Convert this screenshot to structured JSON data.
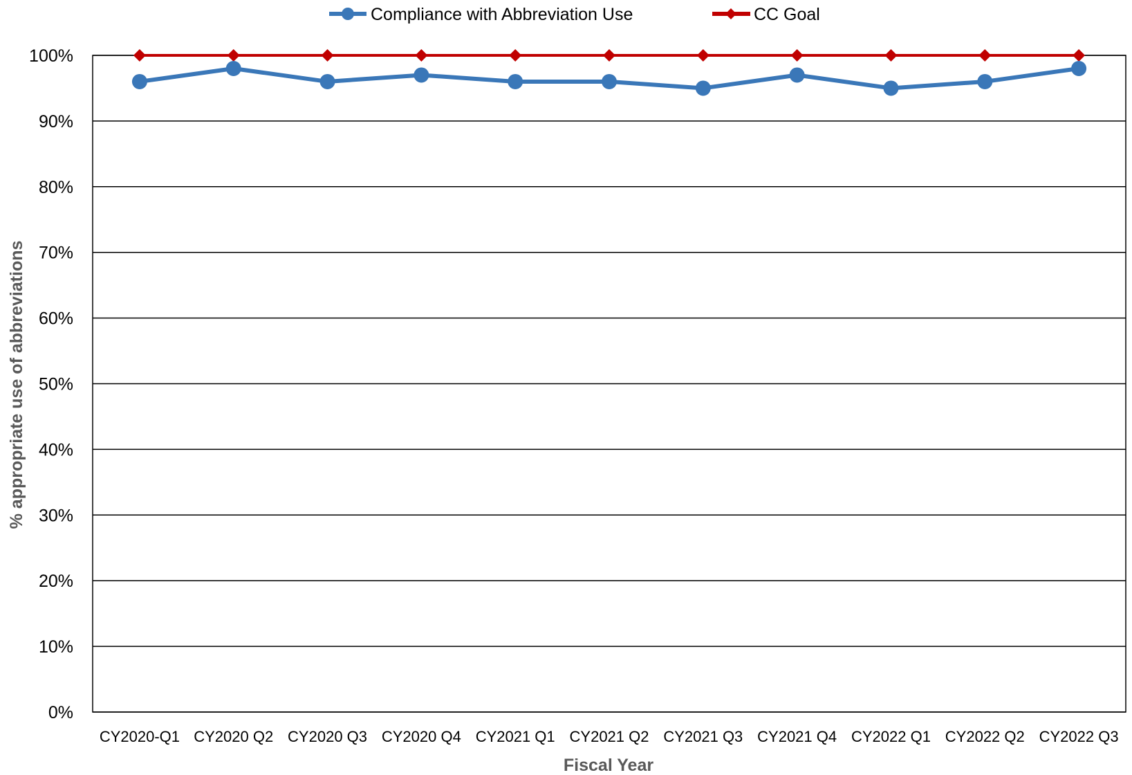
{
  "chart_data": {
    "type": "line",
    "title": "",
    "xlabel": "Fiscal Year",
    "ylabel": "% appropriate use of abbreviations",
    "ylim": [
      0,
      100
    ],
    "yticks": [
      "0%",
      "10%",
      "20%",
      "30%",
      "40%",
      "50%",
      "60%",
      "70%",
      "80%",
      "90%",
      "100%"
    ],
    "grid": true,
    "legend": "top-center",
    "categories": [
      "CY2020-Q1",
      "CY2020 Q2",
      "CY2020 Q3",
      "CY2020 Q4",
      "CY2021 Q1",
      "CY2021 Q2",
      "CY2021 Q3",
      "CY2021 Q4",
      "CY2022 Q1",
      "CY2022 Q2",
      "CY2022 Q3"
    ],
    "series": [
      {
        "name": "Compliance with Abbreviation Use",
        "color": "#3a77b8",
        "marker": "circle",
        "values": [
          96,
          98,
          96,
          97,
          96,
          96,
          95,
          97,
          95,
          96,
          98
        ]
      },
      {
        "name": "CC Goal",
        "color": "#c00000",
        "marker": "diamond",
        "values": [
          100,
          100,
          100,
          100,
          100,
          100,
          100,
          100,
          100,
          100,
          100
        ]
      }
    ]
  }
}
